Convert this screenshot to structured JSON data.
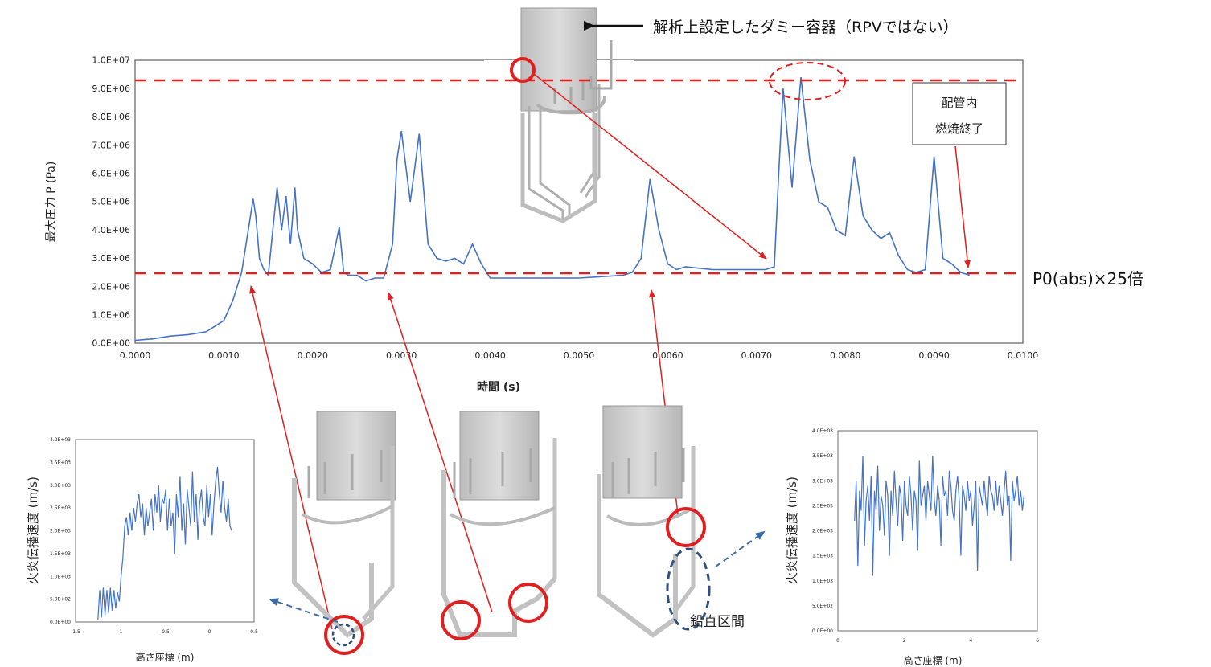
{
  "chart_data": [
    {
      "type": "line",
      "xlabel": "時間 (s)",
      "ylabel": "最大圧力 P (Pa)",
      "xlim": [
        0,
        0.01
      ],
      "ylim": [
        0,
        10000000
      ],
      "xticks": [
        "0.0000",
        "0.0010",
        "0.0020",
        "0.0030",
        "0.0040",
        "0.0050",
        "0.0060",
        "0.0070",
        "0.0080",
        "0.0090",
        "0.0100"
      ],
      "yticks": [
        "0.0E+00",
        "1.0E+06",
        "2.0E+06",
        "3.0E+06",
        "4.0E+06",
        "5.0E+06",
        "6.0E+06",
        "7.0E+06",
        "8.0E+06",
        "9.0E+06",
        "1.0E+07"
      ],
      "grid": false,
      "color": "#4472c4",
      "reference_lines": [
        {
          "y": 9300000,
          "color": "#e02020"
        },
        {
          "y": 2500000,
          "color": "#e02020",
          "label": "P0(abs)×25倍"
        }
      ],
      "series": [
        {
          "x": [
            0,
            0.0002,
            0.0004,
            0.0006,
            0.0008,
            0.0009,
            0.001,
            0.0011,
            0.0012,
            0.00125,
            0.0013,
            0.00133,
            0.00136,
            0.0014,
            0.00145,
            0.0015,
            0.0016,
            0.00165,
            0.0017,
            0.00175,
            0.0018,
            0.00183,
            0.0019,
            0.002,
            0.0021,
            0.0022,
            0.0023,
            0.00235,
            0.0024,
            0.0025,
            0.0026,
            0.0027,
            0.0028,
            0.0029,
            0.00295,
            0.003,
            0.0031,
            0.0032,
            0.0033,
            0.0034,
            0.0035,
            0.0036,
            0.0037,
            0.0038,
            0.0039,
            0.004,
            0.0045,
            0.005,
            0.0055,
            0.0056,
            0.0057,
            0.0058,
            0.0059,
            0.006,
            0.0061,
            0.0062,
            0.0065,
            0.007,
            0.0071,
            0.0072,
            0.00725,
            0.0073,
            0.0074,
            0.0075,
            0.0076,
            0.0077,
            0.0078,
            0.0079,
            0.008,
            0.0081,
            0.0082,
            0.0083,
            0.0084,
            0.0085,
            0.0086,
            0.0087,
            0.0088,
            0.0089,
            0.009,
            0.0091,
            0.0092,
            0.0093,
            0.0094
          ],
          "values": [
            100000,
            150000,
            250000,
            300000,
            400000,
            600000,
            800000,
            1500000,
            2500000,
            3500000,
            4500000,
            5100000,
            4500000,
            3000000,
            2600000,
            2400000,
            5500000,
            4000000,
            5200000,
            3500000,
            5500000,
            4000000,
            3000000,
            2800000,
            2500000,
            2600000,
            4100000,
            2500000,
            2400000,
            2400000,
            2200000,
            2300000,
            2300000,
            3500000,
            6500000,
            7500000,
            5000000,
            7400000,
            3500000,
            3000000,
            2900000,
            3000000,
            2800000,
            3500000,
            2800000,
            2300000,
            2300000,
            2300000,
            2400000,
            2500000,
            3000000,
            5800000,
            4000000,
            2800000,
            2600000,
            2700000,
            2600000,
            2600000,
            2600000,
            2700000,
            6000000,
            9000000,
            5500000,
            9400000,
            6500000,
            5000000,
            4800000,
            4000000,
            3800000,
            6600000,
            4500000,
            4000000,
            3700000,
            3900000,
            3100000,
            2600000,
            2500000,
            2600000,
            6600000,
            3000000,
            2800000,
            2500000,
            2400000
          ]
        }
      ]
    },
    {
      "type": "line",
      "xlabel": "高さ座標 (m)",
      "ylabel": "火炎伝播速度 (m/s)",
      "xlim": [
        -1.5,
        0.5
      ],
      "ylim": [
        0,
        4000
      ],
      "xticks": [
        "-1.5",
        "-1",
        "-0.5",
        "0",
        "0.5"
      ],
      "yticks": [
        "0.0E+00",
        "5.0E+02",
        "1.0E+03",
        "1.5E+03",
        "2.0E+03",
        "2.5E+03",
        "3.0E+03",
        "3.5E+03",
        "4.0E+03"
      ],
      "color": "#4472c4",
      "series": [
        {
          "x": [
            -1.25,
            -1.23,
            -1.21,
            -1.19,
            -1.17,
            -1.15,
            -1.13,
            -1.11,
            -1.09,
            -1.07,
            -1.05,
            -1.03,
            -1.01,
            -0.99,
            -0.97,
            -0.95,
            -0.93,
            -0.91,
            -0.89,
            -0.87,
            -0.85,
            -0.83,
            -0.81,
            -0.79,
            -0.77,
            -0.75,
            -0.73,
            -0.71,
            -0.69,
            -0.67,
            -0.65,
            -0.63,
            -0.61,
            -0.59,
            -0.57,
            -0.55,
            -0.53,
            -0.51,
            -0.49,
            -0.47,
            -0.45,
            -0.43,
            -0.41,
            -0.39,
            -0.37,
            -0.35,
            -0.33,
            -0.31,
            -0.29,
            -0.27,
            -0.25,
            -0.23,
            -0.21,
            -0.19,
            -0.17,
            -0.15,
            -0.13,
            -0.11,
            -0.09,
            -0.07,
            -0.05,
            -0.03,
            -0.01,
            0.01,
            0.03,
            0.05,
            0.07,
            0.09,
            0.11,
            0.13,
            0.15,
            0.17,
            0.19,
            0.21,
            0.23,
            0.25
          ],
          "values": [
            50,
            700,
            100,
            750,
            150,
            700,
            200,
            750,
            250,
            700,
            300,
            650,
            450,
            1000,
            1400,
            2100,
            2300,
            1900,
            2400,
            2000,
            2500,
            2200,
            2600,
            2800,
            2300,
            2600,
            1900,
            2500,
            2100,
            2400,
            2700,
            2000,
            2800,
            2400,
            3000,
            2200,
            2700,
            2600,
            2900,
            2000,
            2700,
            2100,
            2400,
            1500,
            2800,
            2300,
            3200,
            2000,
            2600,
            1700,
            2900,
            2500,
            2100,
            3300,
            2200,
            2800,
            1800,
            2600,
            2900,
            2300,
            2100,
            3000,
            2300,
            2800,
            1900,
            2600,
            3100,
            3400,
            2800,
            2400,
            3100,
            2500,
            2200,
            2700,
            2100,
            2000
          ]
        }
      ]
    },
    {
      "type": "line",
      "xlabel": "高さ座標 (m)",
      "ylabel": "火炎伝播速度 (m/s)",
      "xlim": [
        0,
        6
      ],
      "ylim": [
        0,
        4000
      ],
      "xticks": [
        "0",
        "2",
        "4",
        "6"
      ],
      "yticks": [
        "0.0E+00",
        "5.0E+02",
        "1.0E+03",
        "1.5E+03",
        "2.0E+03",
        "2.5E+03",
        "3.0E+03",
        "3.5E+03",
        "4.0E+03"
      ],
      "color": "#4472c4",
      "series": [
        {
          "x": [
            0.5,
            0.55,
            0.6,
            0.65,
            0.7,
            0.75,
            0.8,
            0.85,
            0.9,
            0.95,
            1,
            1.05,
            1.1,
            1.15,
            1.2,
            1.25,
            1.3,
            1.35,
            1.4,
            1.45,
            1.5,
            1.55,
            1.6,
            1.65,
            1.7,
            1.75,
            1.8,
            1.85,
            1.9,
            1.95,
            2,
            2.05,
            2.1,
            2.15,
            2.2,
            2.25,
            2.3,
            2.35,
            2.4,
            2.45,
            2.5,
            2.55,
            2.6,
            2.65,
            2.7,
            2.75,
            2.8,
            2.85,
            2.9,
            2.95,
            3,
            3.05,
            3.1,
            3.15,
            3.2,
            3.25,
            3.3,
            3.35,
            3.4,
            3.45,
            3.5,
            3.55,
            3.6,
            3.65,
            3.7,
            3.75,
            3.8,
            3.85,
            3.9,
            3.95,
            4,
            4.05,
            4.1,
            4.15,
            4.2,
            4.25,
            4.3,
            4.35,
            4.4,
            4.45,
            4.5,
            4.55,
            4.6,
            4.65,
            4.7,
            4.75,
            4.8,
            4.85,
            4.9,
            4.95,
            5,
            5.05,
            5.1,
            5.15,
            5.2,
            5.25,
            5.3,
            5.35,
            5.4,
            5.45,
            5.5,
            5.55,
            5.6
          ],
          "values": [
            2200,
            3000,
            1300,
            2800,
            2400,
            3500,
            1700,
            2600,
            2900,
            2200,
            3100,
            1100,
            2800,
            2400,
            3300,
            2000,
            2700,
            2500,
            1900,
            3000,
            2700,
            1500,
            2800,
            2300,
            3200,
            2600,
            2100,
            2900,
            2700,
            1800,
            3000,
            2500,
            2300,
            3100,
            2700,
            2000,
            2800,
            2600,
            1600,
            3400,
            2500,
            2700,
            2900,
            2200,
            3000,
            2700,
            2400,
            3500,
            2600,
            2300,
            2900,
            2600,
            1700,
            3100,
            2700,
            2800,
            2300,
            3200,
            2900,
            2400,
            2200,
            2800,
            3100,
            2600,
            1500,
            2900,
            2700,
            2400,
            3000,
            2600,
            2800,
            2100,
            2500,
            3000,
            1200,
            2900,
            2700,
            2500,
            3000,
            2600,
            2300,
            3100,
            2800,
            2700,
            2400,
            3000,
            2500,
            2900,
            2600,
            2300,
            2800,
            3200,
            2500,
            2700,
            1400,
            3000,
            2600,
            2800,
            3100,
            2500,
            2800,
            2400,
            2700
          ]
        }
      ]
    }
  ],
  "annotations": {
    "dummy_vessel": "解析上設定したダミー容器（RPVではない）",
    "combustion_end_l1": "配管内",
    "combustion_end_l2": "燃焼終了",
    "p0_label": "P0(abs)×25倍",
    "vertical_section": "鉛直区間"
  }
}
